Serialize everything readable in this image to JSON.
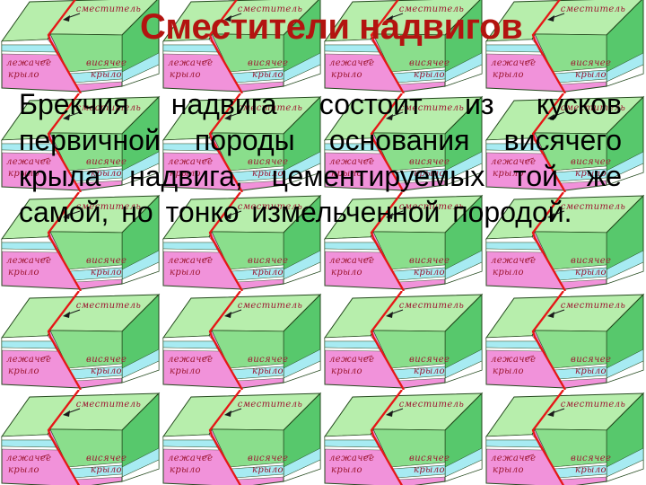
{
  "title": "Сместители надвигов",
  "body": {
    "lines": [
      "Брекчия надвига состоит из кусков",
      "первичной породы основания висячего",
      "крыла надвига, цементируемых той же",
      "самой, но тонко измельченной породой."
    ]
  },
  "tile": {
    "labels": {
      "fault_plane": "сместитель",
      "footwall_line1": "лежачее",
      "footwall_line2": "крыло",
      "hanging_line1": "висячее",
      "hanging_line2": "крыло"
    },
    "colors": {
      "top_face": "#b7eeac",
      "front_face_green": "#8ade8c",
      "side_face": "#57c86c",
      "layer_cyan": "#a7ebf2",
      "layer_white": "#ffffff",
      "layer_pink": "#f192da",
      "fault_red": "#e51717",
      "label_red": "#9c1630",
      "outline": "#23481c"
    },
    "grid": {
      "columns": 4,
      "rows": 5
    }
  },
  "colors": {
    "title": "#b31410",
    "body_text": "#000000",
    "background": "#ffffff"
  }
}
